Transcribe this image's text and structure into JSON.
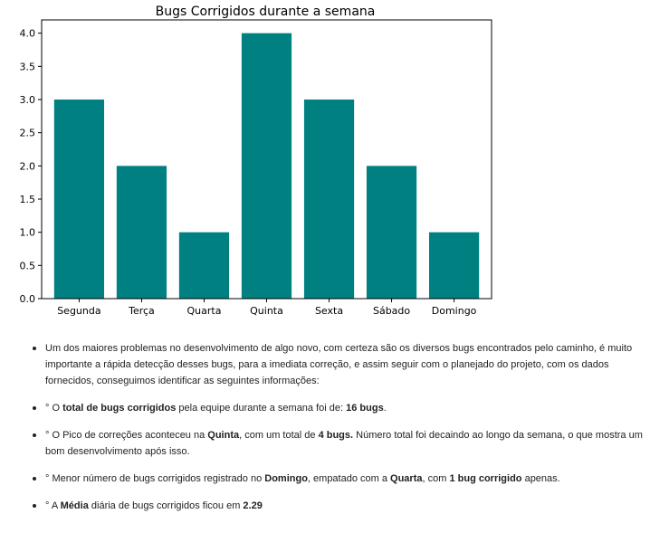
{
  "chart_data": {
    "type": "bar",
    "title": "Bugs Corrigidos durante a semana",
    "xlabel": "",
    "ylabel": "",
    "categories": [
      "Segunda",
      "Terça",
      "Quarta",
      "Quinta",
      "Sexta",
      "Sábado",
      "Domingo"
    ],
    "values": [
      3,
      2,
      1,
      4,
      3,
      2,
      1
    ],
    "ylim": [
      0,
      4.2
    ],
    "yticks": [
      "0.0",
      "0.5",
      "1.0",
      "1.5",
      "2.0",
      "2.5",
      "3.0",
      "3.5",
      "4.0"
    ],
    "bar_color": "#008080",
    "grid": false,
    "legend": "none"
  },
  "notes": {
    "intro": "Um dos maiores problemas no desenvolvimento de algo novo, com certeza são os diversos bugs encontrados pelo caminho, é muito importante a rápida detecção desses bugs, para a imediata correção, e assim seguir com o planejado do projeto, com os dados fornecidos, conseguimos identificar as seguintes informações:",
    "total": {
      "prefix": "° O ",
      "bold1": "total de bugs corrigidos",
      "mid": " pela equipe durante a semana foi de: ",
      "bold2": "16 bugs",
      "suffix": "."
    },
    "peak": {
      "prefix": "° O Pico de correções aconteceu na ",
      "bold1": "Quinta",
      "mid1": ", com um total de ",
      "bold2": "4 bugs.",
      "suffix": " Número total foi decaindo ao longo da semana, o que mostra um bom desenvolvimento após isso."
    },
    "min": {
      "prefix": "° Menor número de bugs corrigidos registrado no ",
      "bold1": "Domingo",
      "mid1": ", empatado com a ",
      "bold2": "Quarta",
      "mid2": ", com ",
      "bold3": "1 bug corrigido",
      "suffix": " apenas."
    },
    "avg": {
      "prefix": "° A ",
      "bold1": "Média",
      "mid": " diária de bugs corrigidos ficou em ",
      "bold2": "2.29"
    }
  }
}
